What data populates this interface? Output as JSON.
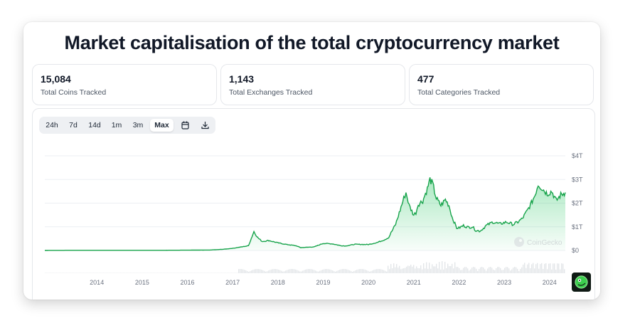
{
  "title": "Market capitalisation of the total cryptocurrency market",
  "stats": [
    {
      "value": "15,084",
      "label": "Total Coins Tracked"
    },
    {
      "value": "1,143",
      "label": "Total Exchanges Tracked"
    },
    {
      "value": "477",
      "label": "Total Categories Tracked"
    }
  ],
  "toolbar": {
    "ranges": [
      "24h",
      "7d",
      "14d",
      "1m",
      "3m",
      "Max"
    ],
    "active": "Max",
    "icons": [
      "calendar-icon",
      "download-icon"
    ]
  },
  "watermark": "CoinGecko",
  "colors": {
    "line": "#16a34a",
    "fill": "#22c55e",
    "volume": "#d1d5db",
    "grid": "#eceff3"
  },
  "chart_data": {
    "type": "area",
    "y_unit": "USD",
    "yticks": [
      "$0",
      "$1T",
      "$2T",
      "$3T",
      "$4T"
    ],
    "ylim": [
      0,
      4
    ],
    "xticks": [
      "2014",
      "2015",
      "2016",
      "2017",
      "2018",
      "2019",
      "2020",
      "2021",
      "2022",
      "2023",
      "2024"
    ],
    "xlim": [
      2013.35,
      2024.85
    ],
    "grid": true,
    "series": [
      {
        "values_unit": "trillion USD",
        "x": [
          2013.35,
          2014.0,
          2015.0,
          2016.0,
          2017.0,
          2017.3,
          2017.5,
          2017.7,
          2017.85,
          2017.97,
          2018.05,
          2018.15,
          2018.3,
          2018.5,
          2018.7,
          2018.9,
          2019.0,
          2019.3,
          2019.5,
          2019.7,
          2019.9,
          2020.0,
          2020.2,
          2020.5,
          2020.7,
          2020.85,
          2020.95,
          2021.0,
          2021.1,
          2021.2,
          2021.28,
          2021.33,
          2021.4,
          2021.5,
          2021.55,
          2021.6,
          2021.7,
          2021.8,
          2021.86,
          2021.92,
          2022.0,
          2022.1,
          2022.2,
          2022.28,
          2022.35,
          2022.45,
          2022.5,
          2022.6,
          2022.7,
          2022.8,
          2022.87,
          2022.95,
          2023.0,
          2023.1,
          2023.25,
          2023.4,
          2023.55,
          2023.7,
          2023.8,
          2023.9,
          2024.0,
          2024.1,
          2024.18,
          2024.25,
          2024.35,
          2024.45,
          2024.55,
          2024.65,
          2024.75,
          2024.85
        ],
        "y": [
          0.001,
          0.006,
          0.006,
          0.007,
          0.018,
          0.05,
          0.09,
          0.15,
          0.2,
          0.8,
          0.55,
          0.38,
          0.42,
          0.32,
          0.25,
          0.2,
          0.12,
          0.15,
          0.3,
          0.28,
          0.2,
          0.19,
          0.26,
          0.25,
          0.34,
          0.45,
          0.55,
          0.75,
          1.1,
          1.7,
          2.2,
          2.45,
          1.9,
          1.5,
          1.6,
          1.95,
          2.1,
          2.6,
          3.0,
          2.8,
          2.2,
          1.9,
          2.15,
          1.9,
          1.4,
          0.95,
          0.95,
          1.05,
          0.98,
          1.0,
          0.85,
          0.82,
          0.87,
          1.05,
          1.2,
          1.12,
          1.2,
          1.1,
          1.2,
          1.35,
          1.65,
          2.0,
          2.35,
          2.8,
          2.6,
          2.4,
          2.5,
          2.1,
          2.35,
          2.45
        ]
      }
    ]
  }
}
